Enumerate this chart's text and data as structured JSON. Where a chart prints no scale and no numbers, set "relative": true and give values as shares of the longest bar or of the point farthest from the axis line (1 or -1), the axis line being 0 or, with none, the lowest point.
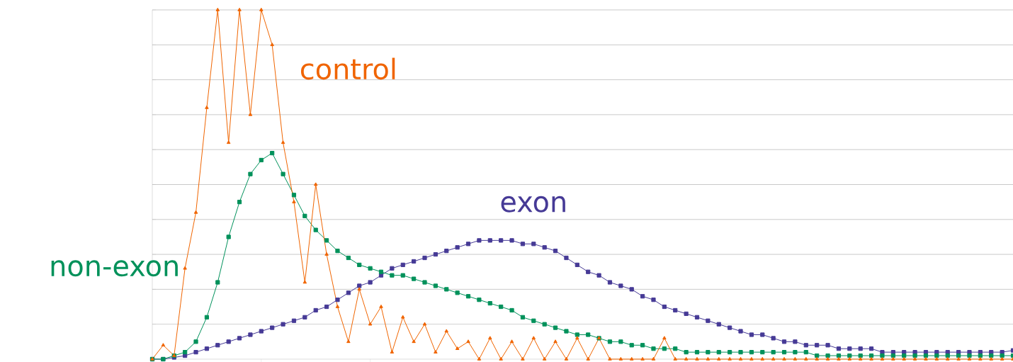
{
  "chart_data": {
    "type": "line",
    "relative": true,
    "grid": "y",
    "line_style": "solid",
    "categories": [
      null,
      null,
      null,
      null,
      null,
      null,
      null,
      null,
      null,
      null,
      null,
      null,
      null,
      null,
      null,
      null,
      null,
      null,
      null,
      null,
      null,
      null,
      null,
      null,
      null,
      null,
      null,
      null,
      null,
      null,
      null,
      null,
      null,
      null,
      null,
      null,
      null,
      null,
      null,
      null,
      null,
      null,
      null,
      null,
      null,
      null,
      null,
      null,
      null,
      null,
      null,
      null,
      null,
      null,
      null,
      null,
      null,
      null,
      null,
      null,
      null,
      null,
      null,
      null,
      null,
      null,
      null,
      null,
      null,
      null,
      null,
      null,
      null,
      null,
      null,
      null,
      null,
      null,
      null,
      null
    ],
    "series": [
      {
        "name": "exon",
        "color": "#463a96",
        "marker": "square",
        "values": [
          0,
          0,
          0.005,
          0.01,
          0.02,
          0.03,
          0.04,
          0.05,
          0.06,
          0.07,
          0.08,
          0.09,
          0.1,
          0.11,
          0.12,
          0.14,
          0.15,
          0.17,
          0.19,
          0.21,
          0.22,
          0.24,
          0.26,
          0.27,
          0.28,
          0.29,
          0.3,
          0.31,
          0.32,
          0.33,
          0.34,
          0.34,
          0.34,
          0.34,
          0.33,
          0.33,
          0.32,
          0.31,
          0.29,
          0.27,
          0.25,
          0.24,
          0.22,
          0.21,
          0.2,
          0.18,
          0.17,
          0.15,
          0.14,
          0.13,
          0.12,
          0.11,
          0.1,
          0.09,
          0.08,
          0.07,
          0.07,
          0.06,
          0.05,
          0.05,
          0.04,
          0.04,
          0.04,
          0.03,
          0.03,
          0.03,
          0.03,
          0.02,
          0.02,
          0.02,
          0.02,
          0.02,
          0.02,
          0.02,
          0.02,
          0.02,
          0.02,
          0.02,
          0.02,
          0.025
        ]
      },
      {
        "name": "non-exon",
        "color": "#00915a",
        "marker": "square",
        "values": [
          0,
          0,
          0.01,
          0.02,
          0.05,
          0.12,
          0.22,
          0.35,
          0.45,
          0.53,
          0.57,
          0.59,
          0.53,
          0.47,
          0.41,
          0.37,
          0.34,
          0.31,
          0.29,
          0.27,
          0.26,
          0.25,
          0.24,
          0.24,
          0.23,
          0.22,
          0.21,
          0.2,
          0.19,
          0.18,
          0.17,
          0.16,
          0.15,
          0.14,
          0.12,
          0.11,
          0.1,
          0.09,
          0.08,
          0.07,
          0.07,
          0.06,
          0.05,
          0.05,
          0.04,
          0.04,
          0.03,
          0.03,
          0.03,
          0.02,
          0.02,
          0.02,
          0.02,
          0.02,
          0.02,
          0.02,
          0.02,
          0.02,
          0.02,
          0.02,
          0.02,
          0.01,
          0.01,
          0.01,
          0.01,
          0.01,
          0.01,
          0.01,
          0.01,
          0.01,
          0.01,
          0.01,
          0.01,
          0.01,
          0.01,
          0.01,
          0.01,
          0.01,
          0.01,
          0.01
        ]
      },
      {
        "name": "control",
        "color": "#f06400",
        "marker": "triangle",
        "values": [
          0,
          0.04,
          0.01,
          0.26,
          0.42,
          0.72,
          1.0,
          0.62,
          1.0,
          0.7,
          1.0,
          0.9,
          0.62,
          0.45,
          0.22,
          0.5,
          0.3,
          0.15,
          0.05,
          0.2,
          0.1,
          0.15,
          0.02,
          0.12,
          0.05,
          0.1,
          0.02,
          0.08,
          0.03,
          0.05,
          0,
          0.06,
          0,
          0.05,
          0,
          0.06,
          0,
          0.05,
          0,
          0.06,
          0,
          0.06,
          0,
          0,
          0,
          0,
          0,
          0.06,
          0,
          0,
          0,
          0,
          0,
          0,
          0,
          0,
          0,
          0,
          0,
          0,
          0,
          0,
          0,
          0,
          0,
          0,
          0,
          0,
          0,
          0,
          0,
          0,
          0,
          0,
          0,
          0,
          0,
          0,
          0,
          0
        ]
      }
    ]
  }
}
